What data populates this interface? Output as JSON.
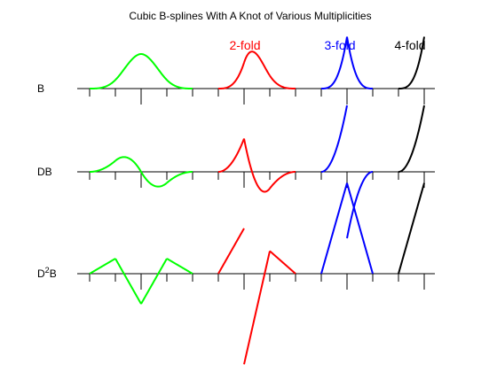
{
  "chart_data": {
    "type": "line",
    "title": "Cubic B-splines With A Knot of Various Multiplicities",
    "colors": {
      "background": "#ffffff",
      "axis": "#000000"
    },
    "groups": [
      {
        "name": "single",
        "label": "",
        "color": "#00ff00",
        "multiplicity": 1,
        "knots": [
          0,
          1,
          2,
          3,
          4
        ],
        "focus_knot": 2
      },
      {
        "name": "2-fold",
        "label": "2-fold",
        "color": "#ff0000",
        "multiplicity": 2,
        "knots": [
          0,
          1,
          1,
          2,
          3
        ],
        "focus_knot": 1
      },
      {
        "name": "3-fold",
        "label": "3-fold",
        "color": "#0000ff",
        "multiplicity": 3,
        "knots": [
          0,
          1,
          1,
          1,
          2
        ],
        "focus_knot": 1
      },
      {
        "name": "4-fold",
        "label": "4-fold",
        "color": "#000000",
        "multiplicity": 4,
        "knots": [
          0,
          1,
          1,
          1,
          1
        ],
        "focus_knot": 1
      }
    ],
    "rows": [
      {
        "name": "B",
        "label": "B",
        "derivative": 0
      },
      {
        "name": "DB",
        "label": "DB",
        "derivative": 1
      },
      {
        "name": "D2B",
        "label": "D",
        "label_sup": "2",
        "label_tail": "B",
        "derivative": 2
      }
    ]
  }
}
